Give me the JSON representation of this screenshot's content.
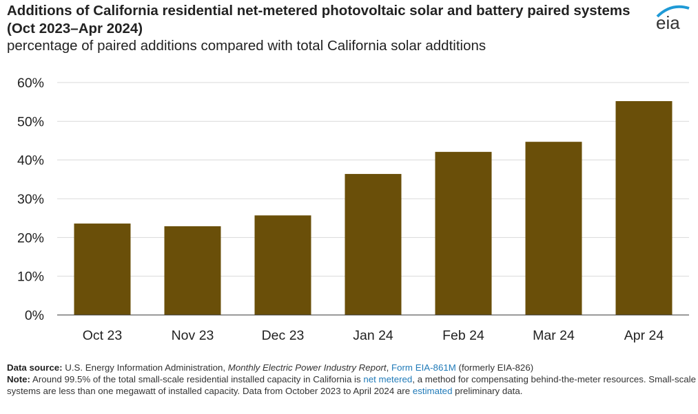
{
  "title": "Additions of California residential net-metered photovoltaic solar and battery paired systems (Oct 2023–Apr 2024)",
  "subtitle": "percentage of paired additions compared with total California solar addtitions",
  "logo_text": "eia",
  "colors": {
    "bar": "#6a4f09",
    "grid": "#d9d9d9",
    "link": "#1f7ab8",
    "logo_arc": "#1f9ad6",
    "logo_text": "#333333"
  },
  "chart_data": {
    "type": "bar",
    "categories": [
      "Oct 23",
      "Nov 23",
      "Dec 23",
      "Jan 24",
      "Feb 24",
      "Mar 24",
      "Apr 24"
    ],
    "values": [
      23.6,
      22.9,
      25.7,
      36.4,
      42.1,
      44.7,
      55.2
    ],
    "ylim": [
      0,
      60
    ],
    "yticks": [
      0,
      10,
      20,
      30,
      40,
      50,
      60
    ],
    "ytick_labels": [
      "0%",
      "10%",
      "20%",
      "30%",
      "40%",
      "50%",
      "60%"
    ],
    "xlabel": "",
    "ylabel": "",
    "grid": true
  },
  "footer": {
    "source_label": "Data source:",
    "source_text": " U.S. Energy Information Administration, ",
    "source_italic": "Monthly Electric Power Industry Report",
    "source_sep": ", ",
    "source_link": "Form EIA-861M",
    "source_tail": " (formerly EIA-826)",
    "note_label": "Note:",
    "note_text1": " Around 99.5% of the total small-scale residential installed capacity in California is ",
    "note_link1": "net metered",
    "note_text2": ", a method for compensating behind-the-meter resources. Small-scale systems are less than one megawatt of installed capacity. Data from October 2023 to April 2024 are ",
    "note_link2": "estimated",
    "note_text3": " preliminary data."
  }
}
